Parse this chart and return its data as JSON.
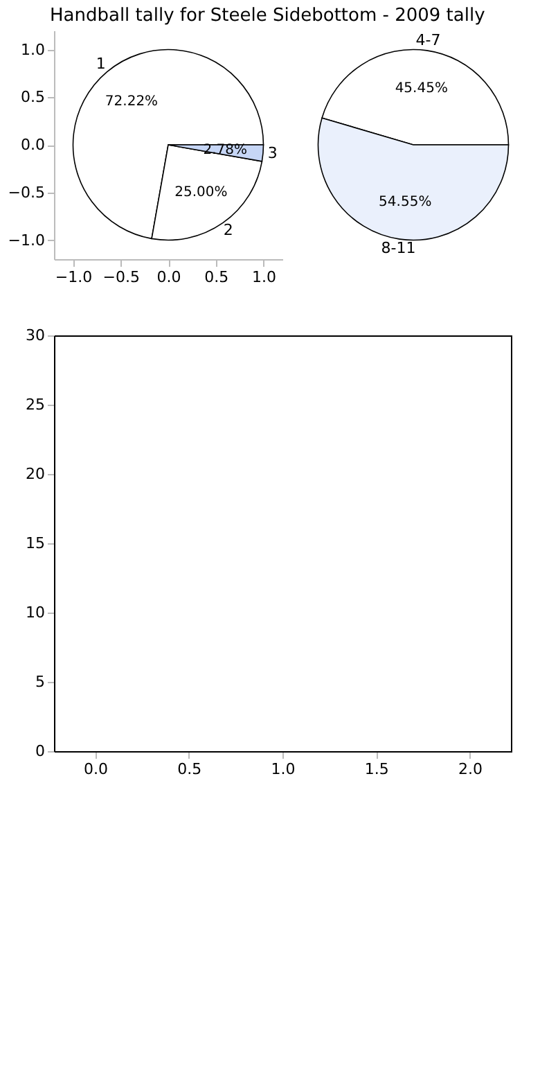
{
  "chart_data": [
    {
      "type": "scatter",
      "title": "Handball tally for Steele Sidebottom - 2009 tally",
      "xlim": [
        -1.2,
        1.2
      ],
      "ylim": [
        -1.2,
        1.2
      ],
      "xticks": [
        {
          "value": -1,
          "label": "−1.0"
        },
        {
          "value": -0.5,
          "label": "−0.5"
        },
        {
          "value": 0,
          "label": "0.0"
        },
        {
          "value": 0.5,
          "label": "0.5"
        },
        {
          "value": 1,
          "label": "1.0"
        }
      ],
      "yticks": [
        {
          "value": -1,
          "label": "−1.0"
        },
        {
          "value": -0.5,
          "label": "−0.5"
        },
        {
          "value": 0,
          "label": "0.0"
        },
        {
          "value": 0.5,
          "label": "0.5"
        },
        {
          "value": 1,
          "label": "1.0"
        }
      ]
    },
    {
      "type": "pie",
      "categories": [
        "1",
        "2",
        "3"
      ],
      "values": [
        72.22,
        25.0,
        2.78
      ],
      "value_labels": [
        "72.22%",
        "25.00%",
        "2.78%"
      ],
      "colors": [
        "#ffffff",
        "#ffffff",
        "#c6d6f6"
      ]
    },
    {
      "type": "pie",
      "categories": [
        "4-7",
        "8-11"
      ],
      "values": [
        45.45,
        54.55
      ],
      "value_labels": [
        "45.45%",
        "54.55%"
      ],
      "colors": [
        "#ffffff",
        "#eaf0fc"
      ]
    },
    {
      "type": "scatter",
      "xlim": [
        -0.22,
        2.22
      ],
      "ylim": [
        0,
        30
      ],
      "xticks": [
        {
          "value": 0,
          "label": "0.0"
        },
        0.5,
        {
          "value": 1,
          "label": "1.0"
        },
        1.5,
        {
          "value": 2,
          "label": "2.0"
        }
      ],
      "yticks": [
        0,
        5,
        10,
        15,
        20,
        25,
        30
      ]
    }
  ]
}
